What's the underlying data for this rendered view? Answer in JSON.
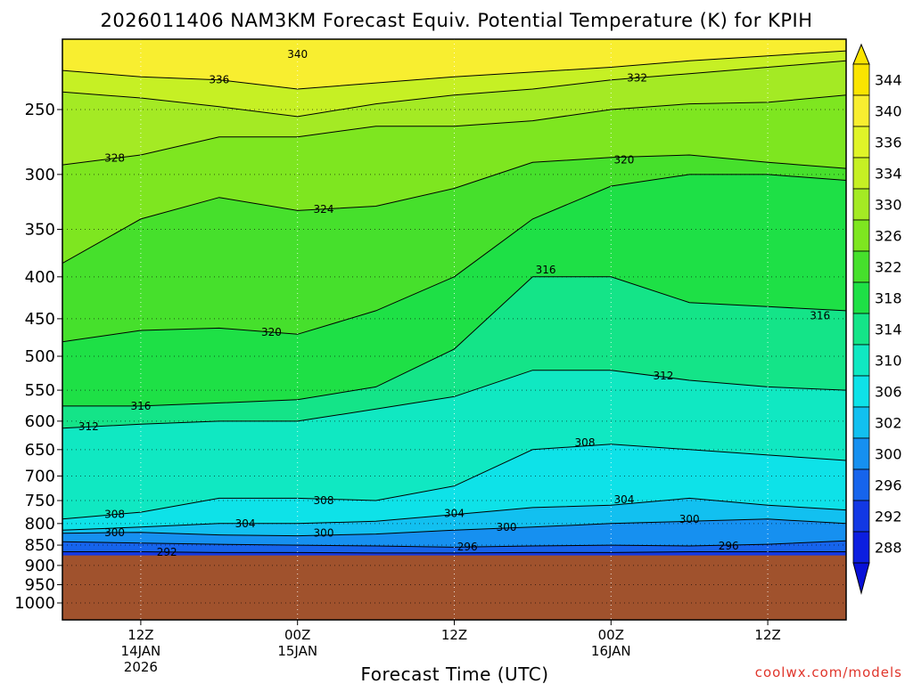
{
  "chart_data": {
    "type": "heatmap",
    "title": "2026011406 NAM3KM Forecast Equiv. Potential Temperature (K) for KPIH",
    "xlabel": "Forecast Time (UTC)",
    "ylabel": "",
    "y_axis": {
      "scale": "log-pressure",
      "units": "hPa",
      "range": [
        1000,
        200
      ],
      "inverted": true,
      "ticks": [
        250,
        300,
        350,
        400,
        450,
        500,
        550,
        600,
        650,
        700,
        750,
        800,
        850,
        900,
        950,
        1000
      ]
    },
    "x_axis": {
      "range": [
        "2026-01-14T06:00Z",
        "2026-01-16T18:00Z"
      ],
      "ticks": [
        {
          "time": "2026-01-14T12:00Z",
          "lines": [
            "12Z",
            "14JAN",
            "2026"
          ]
        },
        {
          "time": "2026-01-15T00:00Z",
          "lines": [
            "00Z",
            "15JAN"
          ]
        },
        {
          "time": "2026-01-15T12:00Z",
          "lines": [
            "12Z"
          ]
        },
        {
          "time": "2026-01-16T00:00Z",
          "lines": [
            "00Z",
            "16JAN"
          ]
        },
        {
          "time": "2026-01-16T12:00Z",
          "lines": [
            "12Z"
          ]
        }
      ]
    },
    "grid": "dotted",
    "surface_pressure_hPa": 875,
    "below_ground_color": "#a0522d",
    "colorbar": {
      "ticks": [
        344,
        340,
        336,
        334,
        330,
        326,
        322,
        318,
        314,
        310,
        306,
        302,
        300,
        296,
        292,
        288
      ],
      "colors": [
        "#fae400",
        "#f8ee30",
        "#e0f428",
        "#c6f024",
        "#a4ea24",
        "#7ee620",
        "#46e02c",
        "#1ee046",
        "#14e488",
        "#10e8c2",
        "#0ee2e8",
        "#12c0f0",
        "#1690f0",
        "#1664ec",
        "#1238e4",
        "#0c1ee0"
      ],
      "extends": "both"
    },
    "series": [
      {
        "name": "336",
        "label_time": "2026-01-14T18:00Z",
        "points": [
          [
            "2026-01-14T06:00Z",
            224
          ],
          [
            "2026-01-14T12:00Z",
            228
          ],
          [
            "2026-01-14T18:00Z",
            230
          ],
          [
            "2026-01-15T00:00Z",
            236
          ],
          [
            "2026-01-15T06:00Z",
            232
          ],
          [
            "2026-01-15T12:00Z",
            228
          ],
          [
            "2026-01-15T18:00Z",
            225
          ],
          [
            "2026-01-16T00:00Z",
            222
          ],
          [
            "2026-01-16T06:00Z",
            218
          ],
          [
            "2026-01-16T12:00Z",
            215
          ],
          [
            "2026-01-16T18:00Z",
            212
          ]
        ]
      },
      {
        "name": "332",
        "label_time": "2026-01-16T02:00Z",
        "points": [
          [
            "2026-01-14T06:00Z",
            238
          ],
          [
            "2026-01-14T12:00Z",
            242
          ],
          [
            "2026-01-14T18:00Z",
            248
          ],
          [
            "2026-01-15T00:00Z",
            255
          ],
          [
            "2026-01-15T06:00Z",
            246
          ],
          [
            "2026-01-15T12:00Z",
            240
          ],
          [
            "2026-01-15T18:00Z",
            236
          ],
          [
            "2026-01-16T00:00Z",
            230
          ],
          [
            "2026-01-16T06:00Z",
            226
          ],
          [
            "2026-01-16T12:00Z",
            222
          ],
          [
            "2026-01-16T18:00Z",
            218
          ]
        ]
      },
      {
        "name": "328",
        "label_time": "2026-01-14T10:00Z",
        "points": [
          [
            "2026-01-14T06:00Z",
            292
          ],
          [
            "2026-01-14T12:00Z",
            284
          ],
          [
            "2026-01-14T18:00Z",
            270
          ],
          [
            "2026-01-15T00:00Z",
            270
          ],
          [
            "2026-01-15T06:00Z",
            262
          ],
          [
            "2026-01-15T12:00Z",
            262
          ],
          [
            "2026-01-15T18:00Z",
            258
          ],
          [
            "2026-01-16T00:00Z",
            250
          ],
          [
            "2026-01-16T06:00Z",
            246
          ],
          [
            "2026-01-16T12:00Z",
            245
          ],
          [
            "2026-01-16T18:00Z",
            240
          ]
        ]
      },
      {
        "name": "324",
        "label_time": "2026-01-15T02:00Z",
        "points": [
          [
            "2026-01-14T06:00Z",
            385
          ],
          [
            "2026-01-14T12:00Z",
            340
          ],
          [
            "2026-01-14T18:00Z",
            320
          ],
          [
            "2026-01-15T00:00Z",
            332
          ],
          [
            "2026-01-15T06:00Z",
            328
          ],
          [
            "2026-01-15T12:00Z",
            312
          ],
          [
            "2026-01-15T18:00Z",
            290
          ],
          [
            "2026-01-16T00:00Z",
            286
          ],
          [
            "2026-01-16T06:00Z",
            284
          ],
          [
            "2026-01-16T12:00Z",
            290
          ],
          [
            "2026-01-16T18:00Z",
            295
          ]
        ]
      },
      {
        "name": "320",
        "label_time": "2026-01-14T22:00Z",
        "points": [
          [
            "2026-01-14T06:00Z",
            480
          ],
          [
            "2026-01-14T12:00Z",
            465
          ],
          [
            "2026-01-14T18:00Z",
            462
          ],
          [
            "2026-01-15T00:00Z",
            470
          ],
          [
            "2026-01-15T06:00Z",
            440
          ],
          [
            "2026-01-15T12:00Z",
            400
          ],
          [
            "2026-01-15T18:00Z",
            340
          ],
          [
            "2026-01-16T00:00Z",
            310
          ],
          [
            "2026-01-16T06:00Z",
            300
          ],
          [
            "2026-01-16T12:00Z",
            300
          ],
          [
            "2026-01-16T18:00Z",
            305
          ]
        ]
      },
      {
        "name": "316",
        "label_time": "2026-01-14T12:00Z",
        "points": [
          [
            "2026-01-14T06:00Z",
            575
          ],
          [
            "2026-01-14T12:00Z",
            575
          ],
          [
            "2026-01-14T18:00Z",
            570
          ],
          [
            "2026-01-15T00:00Z",
            565
          ],
          [
            "2026-01-15T06:00Z",
            545
          ],
          [
            "2026-01-15T12:00Z",
            490
          ],
          [
            "2026-01-15T18:00Z",
            400
          ],
          [
            "2026-01-16T00:00Z",
            400
          ],
          [
            "2026-01-16T06:00Z",
            430
          ],
          [
            "2026-01-16T12:00Z",
            435
          ],
          [
            "2026-01-16T18:00Z",
            440
          ]
        ]
      },
      {
        "name": "312",
        "label_time": "2026-01-14T08:00Z",
        "points": [
          [
            "2026-01-14T06:00Z",
            612
          ],
          [
            "2026-01-14T12:00Z",
            605
          ],
          [
            "2026-01-14T18:00Z",
            600
          ],
          [
            "2026-01-15T00:00Z",
            600
          ],
          [
            "2026-01-15T06:00Z",
            580
          ],
          [
            "2026-01-15T12:00Z",
            560
          ],
          [
            "2026-01-15T18:00Z",
            520
          ],
          [
            "2026-01-16T00:00Z",
            520
          ],
          [
            "2026-01-16T06:00Z",
            535
          ],
          [
            "2026-01-16T12:00Z",
            545
          ],
          [
            "2026-01-16T18:00Z",
            550
          ]
        ]
      },
      {
        "name": "308",
        "label_time": "2026-01-14T10:00Z",
        "points": [
          [
            "2026-01-14T06:00Z",
            790
          ],
          [
            "2026-01-14T12:00Z",
            775
          ],
          [
            "2026-01-14T18:00Z",
            745
          ],
          [
            "2026-01-15T00:00Z",
            745
          ],
          [
            "2026-01-15T06:00Z",
            750
          ],
          [
            "2026-01-15T12:00Z",
            720
          ],
          [
            "2026-01-15T18:00Z",
            650
          ],
          [
            "2026-01-16T00:00Z",
            640
          ],
          [
            "2026-01-16T06:00Z",
            650
          ],
          [
            "2026-01-16T12:00Z",
            660
          ],
          [
            "2026-01-16T18:00Z",
            670
          ]
        ]
      },
      {
        "name": "304",
        "label_time": "2026-01-14T20:00Z",
        "points": [
          [
            "2026-01-14T06:00Z",
            815
          ],
          [
            "2026-01-14T12:00Z",
            808
          ],
          [
            "2026-01-14T18:00Z",
            800
          ],
          [
            "2026-01-15T00:00Z",
            800
          ],
          [
            "2026-01-15T06:00Z",
            795
          ],
          [
            "2026-01-15T12:00Z",
            780
          ],
          [
            "2026-01-15T18:00Z",
            765
          ],
          [
            "2026-01-16T00:00Z",
            760
          ],
          [
            "2026-01-16T06:00Z",
            745
          ],
          [
            "2026-01-16T12:00Z",
            760
          ],
          [
            "2026-01-16T18:00Z",
            770
          ]
        ]
      },
      {
        "name": "300",
        "label_time": "2026-01-14T10:00Z",
        "points": [
          [
            "2026-01-14T06:00Z",
            822
          ],
          [
            "2026-01-14T12:00Z",
            820
          ],
          [
            "2026-01-14T18:00Z",
            826
          ],
          [
            "2026-01-15T00:00Z",
            828
          ],
          [
            "2026-01-15T06:00Z",
            824
          ],
          [
            "2026-01-15T12:00Z",
            815
          ],
          [
            "2026-01-15T18:00Z",
            808
          ],
          [
            "2026-01-16T00:00Z",
            800
          ],
          [
            "2026-01-16T06:00Z",
            795
          ],
          [
            "2026-01-16T12:00Z",
            790
          ],
          [
            "2026-01-16T18:00Z",
            800
          ]
        ]
      },
      {
        "name": "296",
        "label_time": "2026-01-15T13:00Z",
        "points": [
          [
            "2026-01-14T06:00Z",
            842
          ],
          [
            "2026-01-14T12:00Z",
            845
          ],
          [
            "2026-01-14T18:00Z",
            848
          ],
          [
            "2026-01-15T00:00Z",
            850
          ],
          [
            "2026-01-15T06:00Z",
            852
          ],
          [
            "2026-01-15T12:00Z",
            855
          ],
          [
            "2026-01-15T18:00Z",
            852
          ],
          [
            "2026-01-16T00:00Z",
            850
          ],
          [
            "2026-01-16T06:00Z",
            852
          ],
          [
            "2026-01-16T12:00Z",
            848
          ],
          [
            "2026-01-16T18:00Z",
            840
          ]
        ]
      },
      {
        "name": "292",
        "label_time": "2026-01-14T14:00Z",
        "points": [
          [
            "2026-01-14T06:00Z",
            866
          ],
          [
            "2026-01-14T12:00Z",
            866
          ],
          [
            "2026-01-14T18:00Z",
            868
          ],
          [
            "2026-01-15T00:00Z",
            868
          ],
          [
            "2026-01-15T06:00Z",
            869
          ],
          [
            "2026-01-15T12:00Z",
            869
          ],
          [
            "2026-01-15T18:00Z",
            868
          ],
          [
            "2026-01-16T00:00Z",
            868
          ],
          [
            "2026-01-16T06:00Z",
            866
          ],
          [
            "2026-01-16T12:00Z",
            866
          ],
          [
            "2026-01-16T18:00Z",
            866
          ]
        ]
      }
    ],
    "extra_labels": [
      {
        "text": "340",
        "time": "2026-01-15T00:00Z",
        "pressure": 214
      },
      {
        "text": "320",
        "time": "2026-01-16T01:00Z",
        "pressure": 288
      },
      {
        "text": "316",
        "time": "2026-01-15T19:00Z",
        "pressure": 392
      },
      {
        "text": "316",
        "time": "2026-01-16T16:00Z",
        "pressure": 446
      },
      {
        "text": "312",
        "time": "2026-01-16T04:00Z",
        "pressure": 528
      },
      {
        "text": "308",
        "time": "2026-01-15T22:00Z",
        "pressure": 637
      },
      {
        "text": "308",
        "time": "2026-01-15T02:00Z",
        "pressure": 750
      },
      {
        "text": "304",
        "time": "2026-01-16T01:00Z",
        "pressure": 748
      },
      {
        "text": "304",
        "time": "2026-01-15T12:00Z",
        "pressure": 778
      },
      {
        "text": "300",
        "time": "2026-01-15T02:00Z",
        "pressure": 822
      },
      {
        "text": "300",
        "time": "2026-01-15T16:00Z",
        "pressure": 808
      },
      {
        "text": "300",
        "time": "2026-01-16T06:00Z",
        "pressure": 790
      },
      {
        "text": "296",
        "time": "2026-01-16T09:00Z",
        "pressure": 852
      }
    ]
  },
  "footer": {
    "credit": "coolwx.com/models"
  }
}
